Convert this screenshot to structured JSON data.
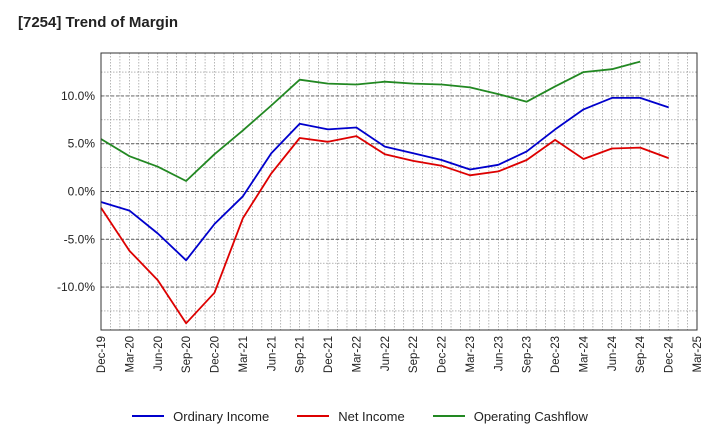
{
  "chart_data": {
    "type": "line",
    "title": "[7254]  Trend of Margin",
    "xlabel": "",
    "ylabel": "",
    "categories": [
      "Dec-19",
      "Mar-20",
      "Jun-20",
      "Sep-20",
      "Dec-20",
      "Mar-21",
      "Jun-21",
      "Sep-21",
      "Dec-21",
      "Mar-22",
      "Jun-22",
      "Sep-22",
      "Dec-22",
      "Mar-23",
      "Jun-23",
      "Sep-23",
      "Dec-23",
      "Mar-24",
      "Jun-24",
      "Sep-24",
      "Dec-24",
      "Mar-25"
    ],
    "y_ticks": [
      {
        "value": 10,
        "label": "10.0%"
      },
      {
        "value": 5,
        "label": "5.0%"
      },
      {
        "value": 0,
        "label": "0.0%"
      },
      {
        "value": -5,
        "label": "-5.0%"
      },
      {
        "value": -10,
        "label": "-10.0%"
      }
    ],
    "ylim": [
      -14.5,
      14.5
    ],
    "grid": true,
    "legend_position": "bottom",
    "series": [
      {
        "name": "Ordinary Income",
        "color": "#0000cc",
        "values": [
          -1.1,
          -2.0,
          -4.4,
          -7.2,
          -3.4,
          -0.5,
          4.0,
          7.1,
          6.5,
          6.7,
          4.7,
          4.0,
          3.3,
          2.3,
          2.8,
          4.2,
          6.5,
          8.6,
          9.8,
          9.8,
          8.8,
          null
        ]
      },
      {
        "name": "Net Income",
        "color": "#dd0000",
        "values": [
          -1.7,
          -6.2,
          -9.3,
          -13.8,
          -10.6,
          -2.8,
          1.9,
          5.6,
          5.2,
          5.8,
          3.9,
          3.2,
          2.7,
          1.7,
          2.1,
          3.3,
          5.4,
          3.4,
          4.5,
          4.6,
          3.5,
          null
        ]
      },
      {
        "name": "Operating Cashflow",
        "color": "#228822",
        "values": [
          5.5,
          3.7,
          2.6,
          1.1,
          3.9,
          6.4,
          9.0,
          11.7,
          11.3,
          11.2,
          11.5,
          11.3,
          11.2,
          10.9,
          10.2,
          9.4,
          11.0,
          12.5,
          12.8,
          13.6,
          null,
          null
        ]
      }
    ]
  }
}
